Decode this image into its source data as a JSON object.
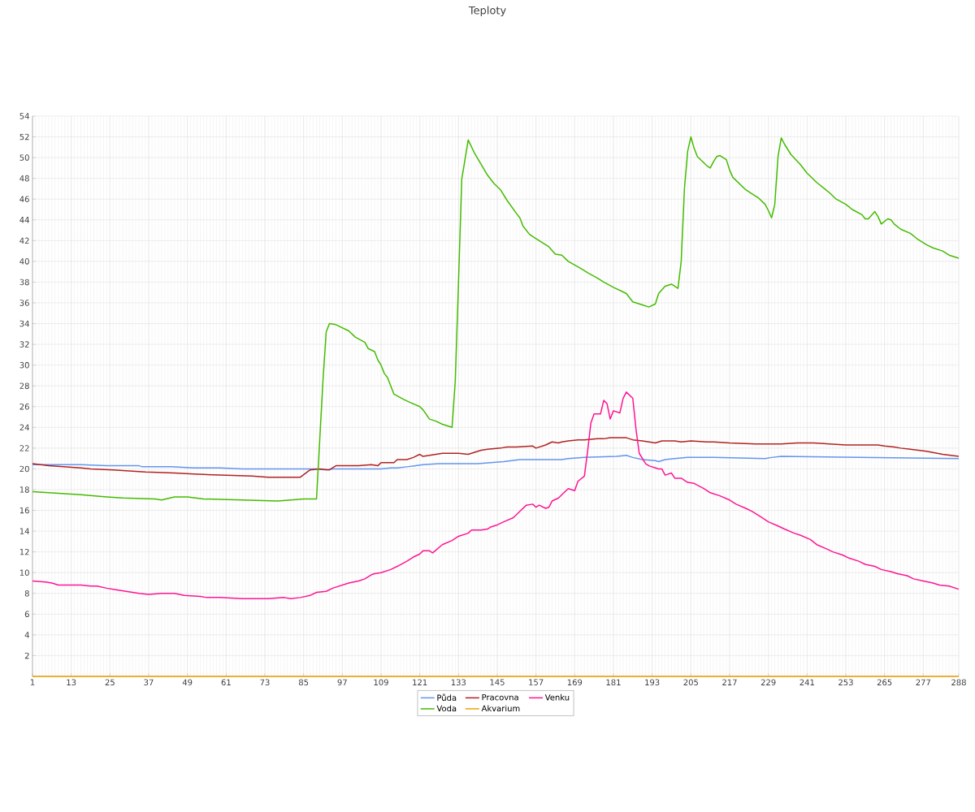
{
  "chart_data": {
    "type": "line",
    "title": "Teploty",
    "xlim": [
      1,
      288
    ],
    "ylim": [
      0,
      54
    ],
    "yticks": [
      {
        "value": 0,
        "label": null
      },
      2,
      4,
      6,
      8,
      10,
      12,
      14,
      16,
      18,
      20,
      22,
      24,
      26,
      28,
      30,
      32,
      34,
      36,
      38,
      40,
      42,
      44,
      46,
      48,
      50,
      52,
      54
    ],
    "xticks": [
      1,
      13,
      25,
      37,
      49,
      61,
      73,
      85,
      97,
      109,
      121,
      133,
      145,
      157,
      169,
      181,
      193,
      205,
      217,
      229,
      241,
      253,
      265,
      277,
      288
    ],
    "grid": true,
    "legend": "bottom",
    "marker": "none",
    "line_style": "solid",
    "series": [
      {
        "name": "Půda",
        "color": "#6495ed",
        "x": [
          1,
          16,
          24,
          34,
          35,
          44,
          51,
          59,
          66,
          89,
          92,
          94,
          104,
          109,
          112,
          114,
          117,
          122,
          127,
          139,
          147,
          152,
          165,
          167,
          172,
          182,
          185,
          187,
          190,
          194,
          195,
          197,
          200,
          204,
          212,
          228,
          230,
          233,
          288
        ],
        "values": [
          20.4,
          20.4,
          20.3,
          20.3,
          20.2,
          20.2,
          20.1,
          20.1,
          20.0,
          20.0,
          19.9,
          20.0,
          20.0,
          20.0,
          20.1,
          20.1,
          20.2,
          20.4,
          20.5,
          20.5,
          20.7,
          20.9,
          20.9,
          21.0,
          21.1,
          21.2,
          21.3,
          21.1,
          20.9,
          20.8,
          20.7,
          20.9,
          21.0,
          21.1,
          21.1,
          21.0,
          21.1,
          21.2,
          21.0
        ]
      },
      {
        "name": "Pracovna",
        "color": "#b22222",
        "x": [
          1,
          6,
          16,
          19,
          26,
          31,
          36,
          45,
          51,
          59,
          69,
          74,
          76,
          84,
          87,
          90,
          93,
          95,
          102,
          106,
          108,
          109,
          113,
          114,
          117,
          119,
          121,
          122,
          124,
          128,
          133,
          136,
          138,
          140,
          142,
          146,
          148,
          151,
          156,
          157,
          160,
          162,
          164,
          165,
          167,
          170,
          172,
          176,
          178,
          180,
          182,
          185,
          187,
          190,
          194,
          196,
          200,
          202,
          205,
          210,
          212,
          217,
          225,
          233,
          238,
          243,
          248,
          253,
          258,
          263,
          265,
          268,
          270,
          273,
          278,
          283,
          288
        ],
        "values": [
          20.5,
          20.3,
          20.1,
          20.0,
          19.9,
          19.8,
          19.7,
          19.6,
          19.5,
          19.4,
          19.3,
          19.2,
          19.2,
          19.2,
          19.9,
          20.0,
          19.9,
          20.3,
          20.3,
          20.4,
          20.3,
          20.6,
          20.6,
          20.9,
          20.9,
          21.1,
          21.4,
          21.2,
          21.3,
          21.5,
          21.5,
          21.4,
          21.6,
          21.8,
          21.9,
          22.0,
          22.1,
          22.1,
          22.2,
          22.0,
          22.3,
          22.6,
          22.5,
          22.6,
          22.7,
          22.8,
          22.8,
          22.9,
          22.9,
          23.0,
          23.0,
          23.0,
          22.8,
          22.7,
          22.5,
          22.7,
          22.7,
          22.6,
          22.7,
          22.6,
          22.6,
          22.5,
          22.4,
          22.4,
          22.5,
          22.5,
          22.4,
          22.3,
          22.3,
          22.3,
          22.2,
          22.1,
          22.0,
          21.9,
          21.7,
          21.4,
          21.2
        ]
      },
      {
        "name": "Venku",
        "color": "#ff1493",
        "x": [
          1,
          5,
          7,
          9,
          16,
          19,
          21,
          24,
          26,
          30,
          34,
          37,
          41,
          45,
          48,
          53,
          55,
          59,
          66,
          74,
          79,
          81,
          84,
          87,
          89,
          92,
          94,
          97,
          99,
          102,
          104,
          106,
          107,
          109,
          112,
          114,
          117,
          119,
          121,
          122,
          124,
          125,
          128,
          131,
          133,
          136,
          137,
          140,
          142,
          143,
          145,
          147,
          150,
          152,
          154,
          156,
          157,
          158,
          160,
          161,
          162,
          164,
          166,
          167,
          169,
          170,
          172,
          173,
          174,
          175,
          177,
          178,
          179,
          180,
          181,
          183,
          184,
          185,
          187,
          188,
          189,
          191,
          192,
          194,
          195,
          196,
          197,
          199,
          200,
          202,
          204,
          206,
          209,
          211,
          214,
          217,
          219,
          222,
          224,
          227,
          229,
          232,
          234,
          237,
          239,
          242,
          244,
          247,
          249,
          252,
          254,
          257,
          259,
          262,
          264,
          267,
          269,
          272,
          274,
          277,
          280,
          282,
          285,
          288
        ],
        "values": [
          9.2,
          9.1,
          9.0,
          8.8,
          8.8,
          8.7,
          8.7,
          8.5,
          8.4,
          8.2,
          8.0,
          7.9,
          8.0,
          8.0,
          7.8,
          7.7,
          7.6,
          7.6,
          7.5,
          7.5,
          7.6,
          7.5,
          7.6,
          7.8,
          8.1,
          8.2,
          8.5,
          8.8,
          9.0,
          9.2,
          9.4,
          9.8,
          9.9,
          10.0,
          10.3,
          10.6,
          11.1,
          11.5,
          11.8,
          12.1,
          12.1,
          11.9,
          12.7,
          13.1,
          13.5,
          13.8,
          14.1,
          14.1,
          14.2,
          14.4,
          14.6,
          14.9,
          15.3,
          15.9,
          16.5,
          16.6,
          16.3,
          16.5,
          16.2,
          16.3,
          16.9,
          17.2,
          17.8,
          18.1,
          17.9,
          18.8,
          19.3,
          21.7,
          24.4,
          25.3,
          25.3,
          26.6,
          26.3,
          24.8,
          25.6,
          25.4,
          26.8,
          27.4,
          26.8,
          23.8,
          21.5,
          20.5,
          20.3,
          20.1,
          20.0,
          20.0,
          19.4,
          19.6,
          19.1,
          19.1,
          18.7,
          18.6,
          18.1,
          17.7,
          17.4,
          17.0,
          16.6,
          16.2,
          15.9,
          15.3,
          14.9,
          14.5,
          14.2,
          13.8,
          13.6,
          13.2,
          12.7,
          12.3,
          12.0,
          11.7,
          11.4,
          11.1,
          10.8,
          10.6,
          10.3,
          10.1,
          9.9,
          9.7,
          9.4,
          9.2,
          9.0,
          8.8,
          8.7,
          8.4
        ]
      },
      {
        "name": "Voda",
        "color": "#44bb00",
        "x": [
          1,
          16,
          24,
          29,
          39,
          41,
          45,
          49,
          54,
          66,
          77,
          85,
          89,
          91,
          92,
          93,
          95,
          99,
          101,
          104,
          105,
          107,
          108,
          109,
          110,
          111,
          113,
          116,
          118,
          121,
          122,
          124,
          126,
          128,
          131,
          132,
          133,
          134,
          136,
          138,
          142,
          144,
          146,
          148,
          151,
          152,
          153,
          155,
          157,
          161,
          163,
          165,
          167,
          171,
          173,
          176,
          178,
          181,
          185,
          187,
          190,
          192,
          194,
          195,
          197,
          199,
          200,
          201,
          202,
          203,
          204,
          205,
          206,
          207,
          210,
          211,
          212,
          213,
          214,
          216,
          217,
          218,
          220,
          222,
          224,
          226,
          228,
          229,
          230,
          231,
          232,
          233,
          234,
          236,
          239,
          241,
          244,
          248,
          250,
          253,
          255,
          258,
          259,
          260,
          262,
          263,
          264,
          266,
          267,
          268,
          270,
          273,
          275,
          278,
          280,
          283,
          285,
          288
        ],
        "values": [
          17.8,
          17.5,
          17.3,
          17.2,
          17.1,
          17.0,
          17.3,
          17.3,
          17.1,
          17.0,
          16.9,
          17.1,
          17.1,
          28.5,
          33.2,
          34.0,
          33.9,
          33.3,
          32.7,
          32.2,
          31.6,
          31.3,
          30.5,
          30.0,
          29.2,
          28.8,
          27.2,
          26.7,
          26.4,
          26.0,
          25.7,
          24.8,
          24.6,
          24.3,
          24.0,
          28.5,
          38.0,
          47.9,
          51.7,
          50.4,
          48.3,
          47.5,
          46.9,
          45.9,
          44.6,
          44.2,
          43.4,
          42.6,
          42.2,
          41.4,
          40.7,
          40.6,
          40.0,
          39.3,
          38.9,
          38.4,
          38.0,
          37.5,
          36.9,
          36.1,
          35.8,
          35.6,
          35.9,
          36.9,
          37.6,
          37.8,
          37.6,
          37.4,
          40.0,
          47.0,
          50.6,
          52.0,
          50.9,
          50.1,
          49.2,
          49.0,
          49.6,
          50.1,
          50.2,
          49.8,
          48.8,
          48.1,
          47.5,
          46.9,
          46.5,
          46.1,
          45.5,
          44.9,
          44.2,
          45.5,
          50.1,
          51.9,
          51.3,
          50.3,
          49.3,
          48.5,
          47.6,
          46.6,
          46.0,
          45.5,
          45.0,
          44.5,
          44.1,
          44.1,
          44.8,
          44.3,
          43.6,
          44.1,
          44.0,
          43.6,
          43.1,
          42.7,
          42.2,
          41.6,
          41.3,
          41.0,
          40.6,
          40.3
        ]
      },
      {
        "name": "Akvarium",
        "color": "#f5a000",
        "x": [
          1,
          288
        ],
        "values": [
          0,
          0
        ]
      }
    ]
  }
}
